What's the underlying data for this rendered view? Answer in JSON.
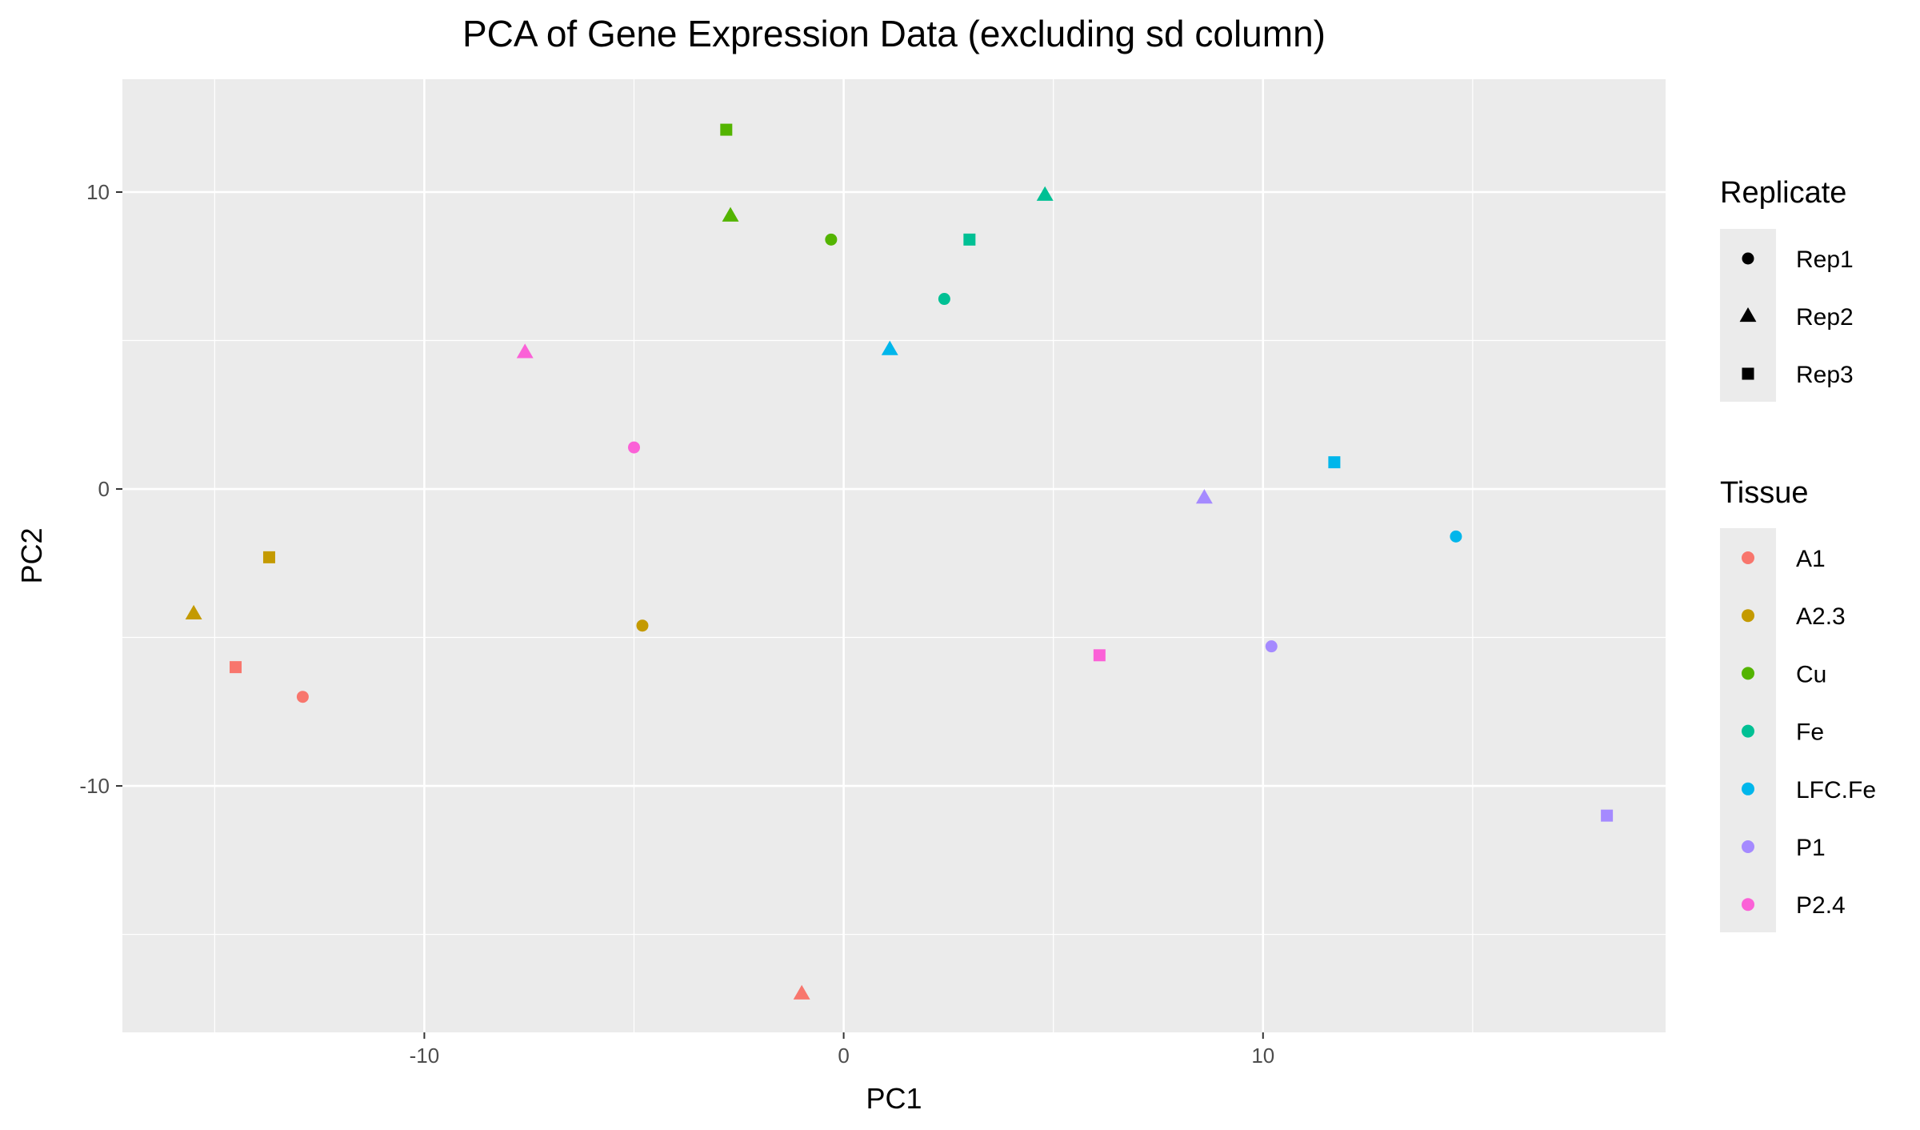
{
  "chart_data": {
    "type": "scatter",
    "title": "PCA of Gene Expression Data (excluding sd column)",
    "xlabel": "PC1",
    "ylabel": "PC2",
    "xlim": [
      -17.2,
      19.6
    ],
    "ylim": [
      -18.3,
      13.8
    ],
    "x_ticks": [
      -10,
      0,
      10
    ],
    "y_ticks": [
      -10,
      0,
      10
    ],
    "x_tick_labels": [
      "-10",
      "0",
      "10"
    ],
    "y_tick_labels": [
      "-10",
      "0",
      "10"
    ],
    "grid": true,
    "legend_position": "right",
    "legends": [
      {
        "title": "Replicate",
        "entries": [
          {
            "label": "Rep1",
            "shape": "circle"
          },
          {
            "label": "Rep2",
            "shape": "triangle"
          },
          {
            "label": "Rep3",
            "shape": "square"
          }
        ]
      },
      {
        "title": "Tissue",
        "entries": [
          {
            "label": "A1",
            "color": "#F8766D"
          },
          {
            "label": "A2.3",
            "color": "#C49A00"
          },
          {
            "label": "Cu",
            "color": "#53B400"
          },
          {
            "label": "Fe",
            "color": "#00C094"
          },
          {
            "label": "LFC.Fe",
            "color": "#00B6EB"
          },
          {
            "label": "P1",
            "color": "#A58AFF"
          },
          {
            "label": "P2.4",
            "color": "#FB61D7"
          }
        ]
      }
    ],
    "points": [
      {
        "tissue": "A1",
        "replicate": "Rep1",
        "x": -12.9,
        "y": -7.0
      },
      {
        "tissue": "A1",
        "replicate": "Rep2",
        "x": -1.0,
        "y": -17.0
      },
      {
        "tissue": "A1",
        "replicate": "Rep3",
        "x": -14.5,
        "y": -6.0
      },
      {
        "tissue": "A2.3",
        "replicate": "Rep1",
        "x": -4.8,
        "y": -4.6
      },
      {
        "tissue": "A2.3",
        "replicate": "Rep2",
        "x": -15.5,
        "y": -4.2
      },
      {
        "tissue": "A2.3",
        "replicate": "Rep3",
        "x": -13.7,
        "y": -2.3
      },
      {
        "tissue": "Cu",
        "replicate": "Rep1",
        "x": -0.3,
        "y": 8.4
      },
      {
        "tissue": "Cu",
        "replicate": "Rep2",
        "x": -2.7,
        "y": 9.2
      },
      {
        "tissue": "Cu",
        "replicate": "Rep3",
        "x": -2.8,
        "y": 12.1
      },
      {
        "tissue": "Fe",
        "replicate": "Rep1",
        "x": 2.4,
        "y": 6.4
      },
      {
        "tissue": "Fe",
        "replicate": "Rep2",
        "x": 4.8,
        "y": 9.9
      },
      {
        "tissue": "Fe",
        "replicate": "Rep3",
        "x": 3.0,
        "y": 8.4
      },
      {
        "tissue": "LFC.Fe",
        "replicate": "Rep1",
        "x": 14.6,
        "y": -1.6
      },
      {
        "tissue": "LFC.Fe",
        "replicate": "Rep2",
        "x": 1.1,
        "y": 4.7
      },
      {
        "tissue": "LFC.Fe",
        "replicate": "Rep3",
        "x": 11.7,
        "y": 0.9
      },
      {
        "tissue": "P1",
        "replicate": "Rep1",
        "x": 10.2,
        "y": -5.3
      },
      {
        "tissue": "P1",
        "replicate": "Rep2",
        "x": 8.6,
        "y": -0.3
      },
      {
        "tissue": "P1",
        "replicate": "Rep3",
        "x": 18.2,
        "y": -11.0
      },
      {
        "tissue": "P2.4",
        "replicate": "Rep1",
        "x": -5.0,
        "y": 1.4
      },
      {
        "tissue": "P2.4",
        "replicate": "Rep2",
        "x": -7.6,
        "y": 4.6
      },
      {
        "tissue": "P2.4",
        "replicate": "Rep3",
        "x": 6.1,
        "y": -5.6
      }
    ]
  }
}
